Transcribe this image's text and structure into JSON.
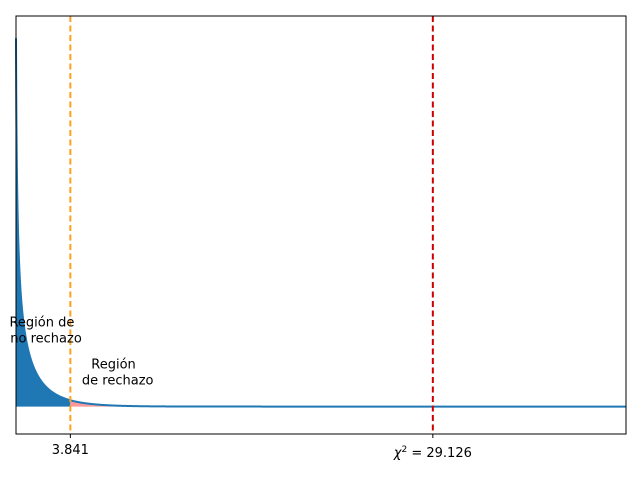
{
  "chart_data": {
    "type": "area",
    "distribution": "chi-squared",
    "df": 1,
    "xlim": [
      0.05,
      42.6
    ],
    "ylim": [
      -0.0021,
      0.0299
    ],
    "grid": false,
    "curve": {
      "x_start": 0.05,
      "x_end": 42.6,
      "y_at_start": 0.0282
    },
    "colors": {
      "curve": "#1f77b4",
      "non_rejection_fill": "#1f77b4",
      "rejection_fill": "#ff9999",
      "critical_line": "#ff9f1c",
      "statistic_line": "#cc0000"
    },
    "critical_value": {
      "x": 3.841,
      "label": "3.841",
      "line_style": "dashed"
    },
    "statistic": {
      "x": 29.126,
      "label_base": "χ",
      "label_sup": "2",
      "label_rest": " = 29.126",
      "line_style": "dashed"
    },
    "annotations": [
      {
        "id": "non-rejection",
        "lines": [
          "Región de",
          " no rechazo"
        ],
        "x": 2.0,
        "y": 0.0055
      },
      {
        "id": "rejection",
        "lines": [
          "Región",
          " de rechazo"
        ],
        "x": 7.0,
        "y": 0.0023
      }
    ]
  }
}
